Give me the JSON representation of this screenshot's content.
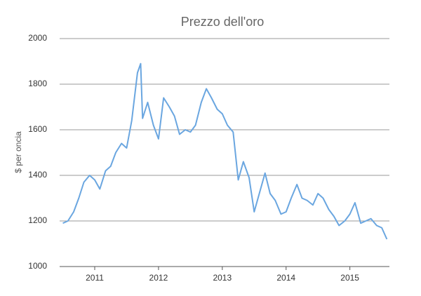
{
  "chart_data": {
    "type": "line",
    "title": "Prezzo dell'oro",
    "y_label": "$ per oncia",
    "x": [
      2010.5,
      2010.58,
      2010.67,
      2010.75,
      2010.83,
      2010.92,
      2011.0,
      2011.08,
      2011.17,
      2011.25,
      2011.33,
      2011.42,
      2011.5,
      2011.58,
      2011.67,
      2011.72,
      2011.75,
      2011.83,
      2011.92,
      2012.0,
      2012.08,
      2012.17,
      2012.25,
      2012.33,
      2012.42,
      2012.5,
      2012.58,
      2012.67,
      2012.75,
      2012.83,
      2012.92,
      2013.0,
      2013.08,
      2013.17,
      2013.25,
      2013.33,
      2013.42,
      2013.5,
      2013.58,
      2013.67,
      2013.75,
      2013.83,
      2013.92,
      2014.0,
      2014.08,
      2014.17,
      2014.25,
      2014.33,
      2014.42,
      2014.5,
      2014.58,
      2014.67,
      2014.75,
      2014.83,
      2014.92,
      2015.0,
      2015.08,
      2015.17,
      2015.25,
      2015.33,
      2015.42,
      2015.5,
      2015.58
    ],
    "values": [
      1190,
      1200,
      1240,
      1300,
      1370,
      1400,
      1380,
      1340,
      1420,
      1440,
      1500,
      1540,
      1520,
      1640,
      1850,
      1890,
      1650,
      1720,
      1620,
      1560,
      1740,
      1700,
      1660,
      1580,
      1600,
      1590,
      1620,
      1720,
      1780,
      1740,
      1690,
      1670,
      1620,
      1590,
      1380,
      1460,
      1390,
      1240,
      1320,
      1410,
      1320,
      1290,
      1230,
      1240,
      1300,
      1360,
      1300,
      1290,
      1270,
      1320,
      1300,
      1250,
      1220,
      1180,
      1200,
      1230,
      1280,
      1190,
      1200,
      1210,
      1180,
      1170,
      1120
    ],
    "color": "#6aa6e0",
    "xlim": [
      2010.45,
      2015.62
    ],
    "xticks": [
      2011,
      2012,
      2013,
      2014,
      2015
    ],
    "ylim": [
      1000,
      2000
    ],
    "yticks": [
      1000,
      1200,
      1400,
      1600,
      1800,
      2000
    ],
    "grid": true
  }
}
